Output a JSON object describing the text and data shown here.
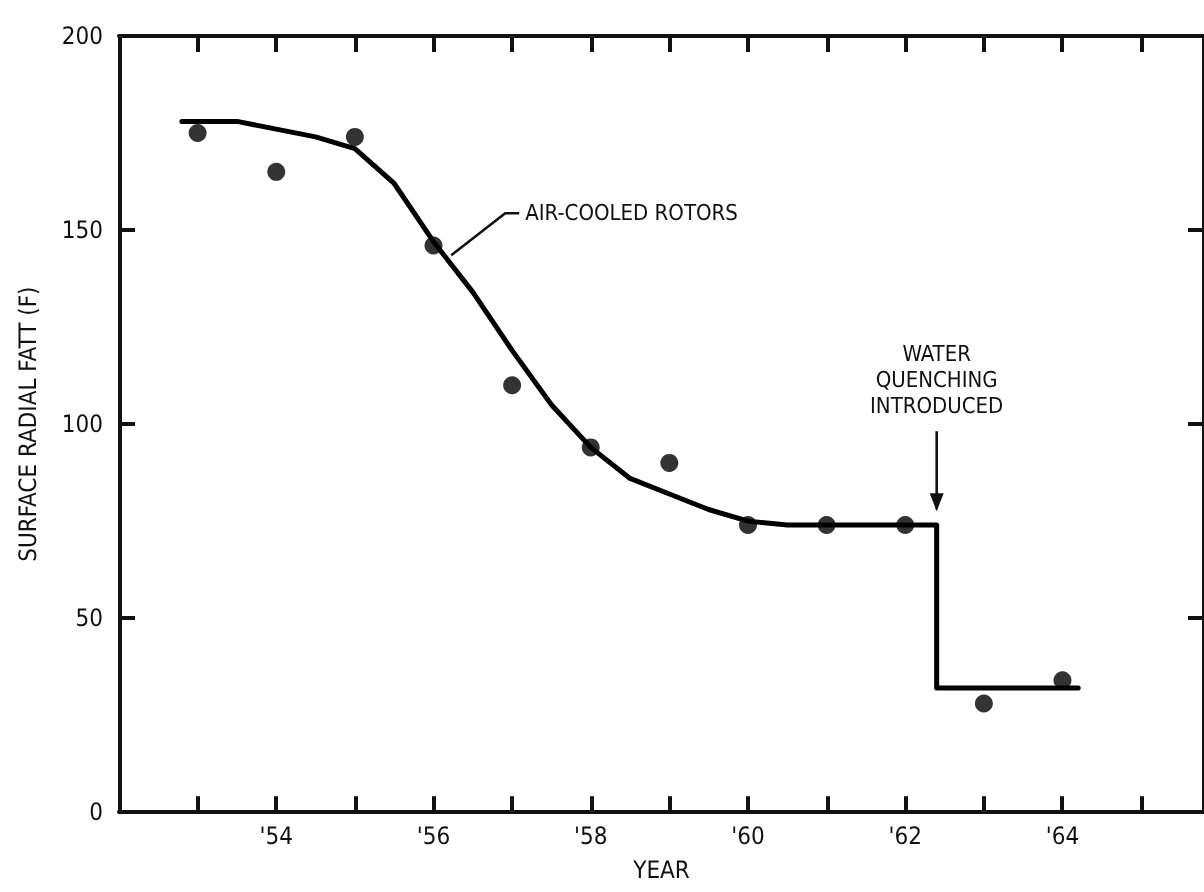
{
  "chart_data": {
    "type": "scatter",
    "xlabel": "YEAR",
    "ylabel": "SURFACE RADIAL FATT (F)",
    "xlim": [
      52,
      65.8
    ],
    "ylim": [
      0,
      200
    ],
    "xticks": [
      {
        "value": 53,
        "label": null
      },
      {
        "value": 54,
        "label": "'54"
      },
      {
        "value": 55,
        "label": null
      },
      {
        "value": 56,
        "label": "'56"
      },
      {
        "value": 57,
        "label": null
      },
      {
        "value": 58,
        "label": "'58"
      },
      {
        "value": 59,
        "label": null
      },
      {
        "value": 60,
        "label": "'60"
      },
      {
        "value": 61,
        "label": null
      },
      {
        "value": 62,
        "label": "'62"
      },
      {
        "value": 63,
        "label": null
      },
      {
        "value": 64,
        "label": "'64"
      },
      {
        "value": 65,
        "label": null
      }
    ],
    "yticks": [
      0,
      50,
      100,
      150,
      200
    ],
    "grid": false,
    "series": [
      {
        "color": "#000000",
        "marker": "circle",
        "x": [
          53,
          54,
          55,
          56,
          57,
          58,
          59,
          60,
          61,
          62,
          63,
          64
        ],
        "values": [
          175,
          165,
          174,
          146,
          110,
          94,
          90,
          74,
          74,
          74,
          28,
          34
        ]
      },
      {
        "type": "line",
        "color": "#000000",
        "marker": "none",
        "line_style": "solid",
        "x": [
          52.8,
          53.5,
          54,
          54.5,
          55,
          55.5,
          56,
          56.5,
          57,
          57.5,
          58,
          58.5,
          59,
          59.5,
          60,
          60.5,
          61,
          62.4,
          62.4,
          64.2
        ],
        "values": [
          178,
          178,
          176,
          174,
          171,
          162,
          147,
          134,
          119,
          105,
          94,
          86,
          82,
          78,
          75,
          74,
          74,
          74,
          32,
          32
        ]
      }
    ],
    "annotations": [
      {
        "text": "AIR-COOLED ROTORS",
        "x": 56.2,
        "y": 143
      },
      {
        "text": "WATER\nQUENCHING\nINTRODUCED",
        "x": 62.4,
        "y": 76
      }
    ]
  }
}
